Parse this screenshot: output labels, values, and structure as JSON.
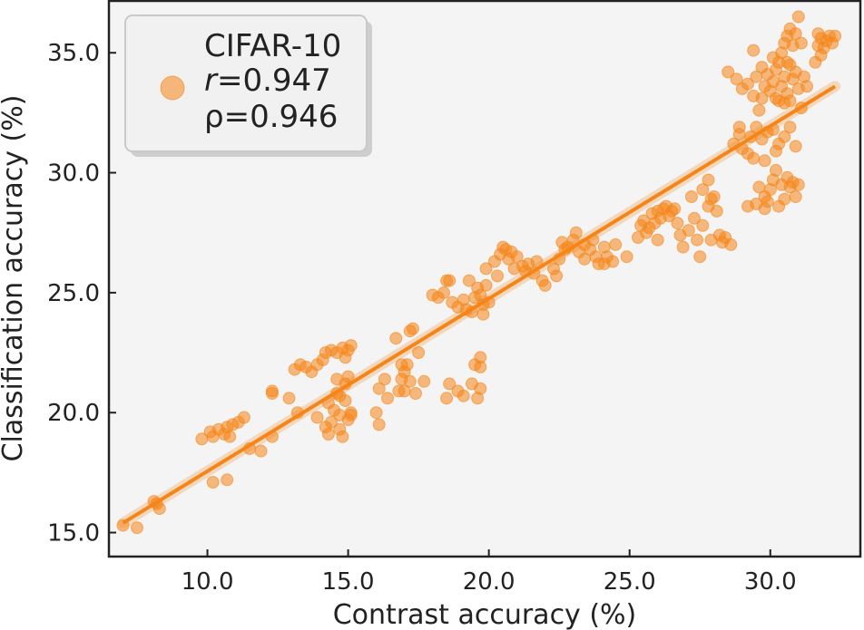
{
  "chart_data": {
    "type": "scatter",
    "xlabel": "Contrast accuracy (%)",
    "ylabel": "Classification accuracy (%)",
    "xlim": [
      6.5,
      33.2
    ],
    "ylim": [
      14.0,
      37.2
    ],
    "x_ticks": [
      10.0,
      15.0,
      20.0,
      25.0,
      30.0
    ],
    "y_ticks": [
      15.0,
      20.0,
      25.0,
      30.0,
      35.0
    ],
    "x_tick_labels": [
      "10.0",
      "15.0",
      "20.0",
      "25.0",
      "30.0"
    ],
    "y_tick_labels": [
      "15.0",
      "20.0",
      "25.0",
      "30.0",
      "35.0"
    ],
    "grid": false,
    "background_color": "#f4f4f4",
    "series_color": "#f58518",
    "legend": {
      "placement": "top-left",
      "dataset": "CIFAR-10",
      "r_symbol": "r",
      "r_value": "=0.947",
      "rho_text": "ρ=0.946"
    },
    "regression_line": {
      "x": [
        7.0,
        32.3
      ],
      "y": [
        15.4,
        33.6
      ]
    },
    "series": [
      {
        "points": [
          [
            7.0,
            15.3
          ],
          [
            7.5,
            15.2
          ],
          [
            8.1,
            16.3
          ],
          [
            8.3,
            16.0
          ],
          [
            8.2,
            16.2
          ],
          [
            9.8,
            18.9
          ],
          [
            10.1,
            19.2
          ],
          [
            10.2,
            19.0
          ],
          [
            10.4,
            19.3
          ],
          [
            10.6,
            19.1
          ],
          [
            10.7,
            19.4
          ],
          [
            10.8,
            19.0
          ],
          [
            10.9,
            19.5
          ],
          [
            11.1,
            19.6
          ],
          [
            11.3,
            19.8
          ],
          [
            11.5,
            18.5
          ],
          [
            11.9,
            18.4
          ],
          [
            12.3,
            19.0
          ],
          [
            10.2,
            17.1
          ],
          [
            10.7,
            17.2
          ],
          [
            12.3,
            20.8
          ],
          [
            12.3,
            20.9
          ],
          [
            12.9,
            20.6
          ],
          [
            13.1,
            21.8
          ],
          [
            13.3,
            22.0
          ],
          [
            13.5,
            21.9
          ],
          [
            13.7,
            21.7
          ],
          [
            13.9,
            22.0
          ],
          [
            14.1,
            22.2
          ],
          [
            14.2,
            22.5
          ],
          [
            14.4,
            22.6
          ],
          [
            14.6,
            22.5
          ],
          [
            14.8,
            22.7
          ],
          [
            15.0,
            22.6
          ],
          [
            15.1,
            22.8
          ],
          [
            14.9,
            22.3
          ],
          [
            13.2,
            20.0
          ],
          [
            13.9,
            19.8
          ],
          [
            14.2,
            19.4
          ],
          [
            14.3,
            19.1
          ],
          [
            14.4,
            19.6
          ],
          [
            14.5,
            20.1
          ],
          [
            14.7,
            19.3
          ],
          [
            14.7,
            19.9
          ],
          [
            14.9,
            20.5
          ],
          [
            15.0,
            19.7
          ],
          [
            15.1,
            20.0
          ],
          [
            14.6,
            20.8
          ],
          [
            14.9,
            21.2
          ],
          [
            15.0,
            21.5
          ],
          [
            14.3,
            20.4
          ],
          [
            14.8,
            19.0
          ],
          [
            15.1,
            19.9
          ],
          [
            14.6,
            21.4
          ],
          [
            14.7,
            20.7
          ],
          [
            16.0,
            20.0
          ],
          [
            16.1,
            19.5
          ],
          [
            16.1,
            21.0
          ],
          [
            16.3,
            21.4
          ],
          [
            16.4,
            20.6
          ],
          [
            16.8,
            20.9
          ],
          [
            16.9,
            21.4
          ],
          [
            17.0,
            21.7
          ],
          [
            17.1,
            22.0
          ],
          [
            17.2,
            21.3
          ],
          [
            17.3,
            23.5
          ],
          [
            17.2,
            23.4
          ],
          [
            17.5,
            22.5
          ],
          [
            17.7,
            21.3
          ],
          [
            16.7,
            23.1
          ],
          [
            16.9,
            22.0
          ],
          [
            17.4,
            20.8
          ],
          [
            17.0,
            20.9
          ],
          [
            18.0,
            24.9
          ],
          [
            18.2,
            24.8
          ],
          [
            18.4,
            25.0
          ],
          [
            18.5,
            25.5
          ],
          [
            18.7,
            24.6
          ],
          [
            18.9,
            24.4
          ],
          [
            19.1,
            24.7
          ],
          [
            19.2,
            24.3
          ],
          [
            19.3,
            25.5
          ],
          [
            19.5,
            24.8
          ],
          [
            19.6,
            25.2
          ],
          [
            19.7,
            24.9
          ],
          [
            19.8,
            24.5
          ],
          [
            20.0,
            24.6
          ],
          [
            19.9,
            25.3
          ],
          [
            19.4,
            24.2
          ],
          [
            19.8,
            24.1
          ],
          [
            18.6,
            25.5
          ],
          [
            18.5,
            20.6
          ],
          [
            18.6,
            21.2
          ],
          [
            18.9,
            20.9
          ],
          [
            19.1,
            20.7
          ],
          [
            19.4,
            21.2
          ],
          [
            19.6,
            20.6
          ],
          [
            19.7,
            21.0
          ],
          [
            19.5,
            22.0
          ],
          [
            19.7,
            22.3
          ],
          [
            19.7,
            21.9
          ],
          [
            19.9,
            26.0
          ],
          [
            20.2,
            26.3
          ],
          [
            20.4,
            26.6
          ],
          [
            20.5,
            26.9
          ],
          [
            20.7,
            26.4
          ],
          [
            20.8,
            26.7
          ],
          [
            21.0,
            26.5
          ],
          [
            21.2,
            26.1
          ],
          [
            21.3,
            25.9
          ],
          [
            21.4,
            26.2
          ],
          [
            21.6,
            25.8
          ],
          [
            21.7,
            26.3
          ],
          [
            21.9,
            25.5
          ],
          [
            22.0,
            25.3
          ],
          [
            20.6,
            26.8
          ],
          [
            20.9,
            26.0
          ],
          [
            20.3,
            25.7
          ],
          [
            22.3,
            26.0
          ],
          [
            22.4,
            25.7
          ],
          [
            22.5,
            26.4
          ],
          [
            22.6,
            27.1
          ],
          [
            22.8,
            26.9
          ],
          [
            23.0,
            27.2
          ],
          [
            23.1,
            27.5
          ],
          [
            23.2,
            26.7
          ],
          [
            23.4,
            26.4
          ],
          [
            23.6,
            26.8
          ],
          [
            23.7,
            27.2
          ],
          [
            23.8,
            26.5
          ],
          [
            23.9,
            26.2
          ],
          [
            24.1,
            26.9
          ],
          [
            24.2,
            26.5
          ],
          [
            24.4,
            26.3
          ],
          [
            24.5,
            27.0
          ],
          [
            24.1,
            26.2
          ],
          [
            23.4,
            27.0
          ],
          [
            22.7,
            26.8
          ],
          [
            24.9,
            26.5
          ],
          [
            25.3,
            27.3
          ],
          [
            25.4,
            27.8
          ],
          [
            25.5,
            28.0
          ],
          [
            25.6,
            27.5
          ],
          [
            25.8,
            28.3
          ],
          [
            25.9,
            27.9
          ],
          [
            26.0,
            28.4
          ],
          [
            26.1,
            28.1
          ],
          [
            26.2,
            28.5
          ],
          [
            26.3,
            28.6
          ],
          [
            26.4,
            28.2
          ],
          [
            26.5,
            28.4
          ],
          [
            26.7,
            27.9
          ],
          [
            26.8,
            27.4
          ],
          [
            26.9,
            26.9
          ],
          [
            27.1,
            27.6
          ],
          [
            27.3,
            28.1
          ],
          [
            27.4,
            27.2
          ],
          [
            27.5,
            26.5
          ],
          [
            27.6,
            27.8
          ],
          [
            27.8,
            28.6
          ],
          [
            27.9,
            28.9
          ],
          [
            26.6,
            28.5
          ],
          [
            25.7,
            27.7
          ],
          [
            26.0,
            27.2
          ],
          [
            27.2,
            29.0
          ],
          [
            27.6,
            29.3
          ],
          [
            27.8,
            29.7
          ],
          [
            28.0,
            29.0
          ],
          [
            28.1,
            28.4
          ],
          [
            28.2,
            27.4
          ],
          [
            28.3,
            27.1
          ],
          [
            28.4,
            27.3
          ],
          [
            28.6,
            27.0
          ],
          [
            27.9,
            27.2
          ],
          [
            28.7,
            31.2
          ],
          [
            28.9,
            31.6
          ],
          [
            29.0,
            31.0
          ],
          [
            29.2,
            30.8
          ],
          [
            29.3,
            31.5
          ],
          [
            29.5,
            31.9
          ],
          [
            29.7,
            31.4
          ],
          [
            29.9,
            31.7
          ],
          [
            30.1,
            31.8
          ],
          [
            30.3,
            31.2
          ],
          [
            30.5,
            31.5
          ],
          [
            30.7,
            31.9
          ],
          [
            30.9,
            31.1
          ],
          [
            30.2,
            30.9
          ],
          [
            29.4,
            30.6
          ],
          [
            28.9,
            31.9
          ],
          [
            29.8,
            30.5
          ],
          [
            29.2,
            28.6
          ],
          [
            29.5,
            28.7
          ],
          [
            29.8,
            29.0
          ],
          [
            30.0,
            29.3
          ],
          [
            30.1,
            29.7
          ],
          [
            30.2,
            30.1
          ],
          [
            30.4,
            29.5
          ],
          [
            30.5,
            28.9
          ],
          [
            30.6,
            29.8
          ],
          [
            30.7,
            29.4
          ],
          [
            30.8,
            29.6
          ],
          [
            30.9,
            29.0
          ],
          [
            31.0,
            29.5
          ],
          [
            29.9,
            28.8
          ],
          [
            30.3,
            28.6
          ],
          [
            29.6,
            29.4
          ],
          [
            29.8,
            28.5
          ],
          [
            28.5,
            34.2
          ],
          [
            28.8,
            33.9
          ],
          [
            29.0,
            33.5
          ],
          [
            29.2,
            33.7
          ],
          [
            29.4,
            33.2
          ],
          [
            29.5,
            34.0
          ],
          [
            29.6,
            32.6
          ],
          [
            29.7,
            33.1
          ],
          [
            29.8,
            33.6
          ],
          [
            29.9,
            34.1
          ],
          [
            30.0,
            33.4
          ],
          [
            30.1,
            33.8
          ],
          [
            30.2,
            34.3
          ],
          [
            30.3,
            33.0
          ],
          [
            30.4,
            33.6
          ],
          [
            30.5,
            34.0
          ],
          [
            30.6,
            33.3
          ],
          [
            30.7,
            34.5
          ],
          [
            30.8,
            33.9
          ],
          [
            30.9,
            34.2
          ],
          [
            31.0,
            33.5
          ],
          [
            31.1,
            32.7
          ],
          [
            31.2,
            34.0
          ],
          [
            31.3,
            33.6
          ],
          [
            30.1,
            34.8
          ],
          [
            30.4,
            35.0
          ],
          [
            30.5,
            35.4
          ],
          [
            30.6,
            35.7
          ],
          [
            30.7,
            36.0
          ],
          [
            30.8,
            35.3
          ],
          [
            30.9,
            35.8
          ],
          [
            31.0,
            36.5
          ],
          [
            31.1,
            35.4
          ],
          [
            30.6,
            34.6
          ],
          [
            30.3,
            34.6
          ],
          [
            29.4,
            35.1
          ],
          [
            29.7,
            34.4
          ],
          [
            30.2,
            33.1
          ],
          [
            30.5,
            32.9
          ],
          [
            30.7,
            33.0
          ],
          [
            31.6,
            34.6
          ],
          [
            31.7,
            35.3
          ],
          [
            31.8,
            35.6
          ],
          [
            31.9,
            35.2
          ],
          [
            32.0,
            35.5
          ],
          [
            32.1,
            35.7
          ],
          [
            32.2,
            35.4
          ],
          [
            32.3,
            35.7
          ],
          [
            31.7,
            35.8
          ],
          [
            31.8,
            34.9
          ]
        ]
      }
    ]
  }
}
